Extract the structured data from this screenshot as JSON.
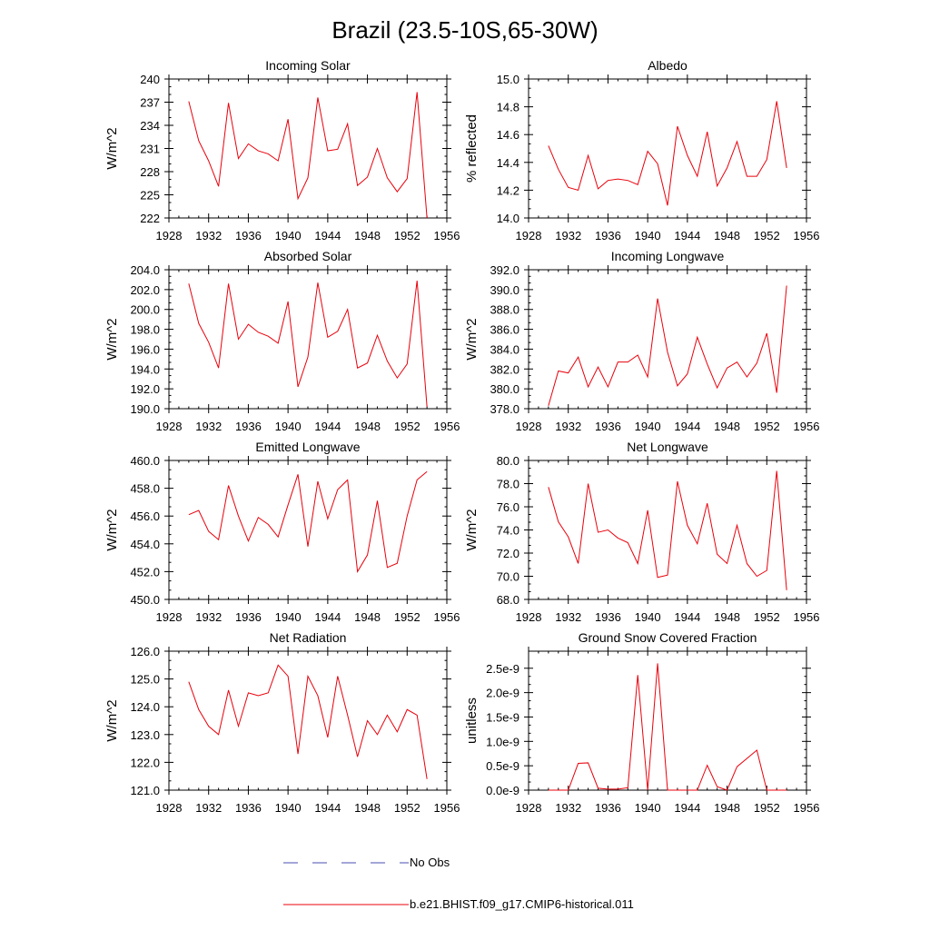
{
  "figure": {
    "title": "Brazil (23.5-10S,65-30W)",
    "legend": [
      {
        "label": "No Obs",
        "color": "#4a4fb0",
        "style": "dashed"
      },
      {
        "label": "b.e21.BHIST.f09_g17.CMIP6-historical.011",
        "color": "#e8000b",
        "style": "solid"
      }
    ]
  },
  "chart_data": [
    {
      "type": "line",
      "title": "Incoming Solar",
      "ylabel": "W/m^2",
      "xlim": [
        1928,
        1956
      ],
      "ylim": [
        222,
        240
      ],
      "xticks": [
        1928,
        1932,
        1936,
        1940,
        1944,
        1948,
        1952,
        1956
      ],
      "yticks": [
        "222",
        "225",
        "228",
        "231",
        "234",
        "237",
        "240"
      ],
      "x": [
        1930,
        1931,
        1932,
        1933,
        1934,
        1935,
        1936,
        1937,
        1938,
        1939,
        1940,
        1941,
        1942,
        1943,
        1944,
        1945,
        1946,
        1947,
        1948,
        1949,
        1950,
        1951,
        1952,
        1953,
        1954
      ],
      "series": [
        {
          "color": "#e8000b",
          "values": [
            237.1,
            232.0,
            229.4,
            226.1,
            236.9,
            229.7,
            231.6,
            230.7,
            230.3,
            229.4,
            234.8,
            224.5,
            227.2,
            237.6,
            230.7,
            230.9,
            234.2,
            226.2,
            227.3,
            231.0,
            227.2,
            225.4,
            227.1,
            238.3,
            222.0
          ]
        }
      ]
    },
    {
      "type": "line",
      "title": "Albedo",
      "ylabel": "% reflected",
      "xlim": [
        1928,
        1956
      ],
      "ylim": [
        14.0,
        15.0
      ],
      "xticks": [
        1928,
        1932,
        1936,
        1940,
        1944,
        1948,
        1952,
        1956
      ],
      "yticks": [
        "14.0",
        "14.2",
        "14.4",
        "14.6",
        "14.8",
        "15.0"
      ],
      "x": [
        1930,
        1931,
        1932,
        1933,
        1934,
        1935,
        1936,
        1937,
        1938,
        1939,
        1940,
        1941,
        1942,
        1943,
        1944,
        1945,
        1946,
        1947,
        1948,
        1949,
        1950,
        1951,
        1952,
        1953,
        1954
      ],
      "series": [
        {
          "color": "#e8000b",
          "values": [
            14.52,
            14.35,
            14.22,
            14.2,
            14.45,
            14.21,
            14.27,
            14.28,
            14.27,
            14.24,
            14.48,
            14.39,
            14.09,
            14.66,
            14.45,
            14.3,
            14.62,
            14.23,
            14.36,
            14.55,
            14.3,
            14.3,
            14.42,
            14.84,
            14.36
          ]
        }
      ]
    },
    {
      "type": "line",
      "title": "Absorbed Solar",
      "ylabel": "W/m^2",
      "xlim": [
        1928,
        1956
      ],
      "ylim": [
        190,
        204
      ],
      "xticks": [
        1928,
        1932,
        1936,
        1940,
        1944,
        1948,
        1952,
        1956
      ],
      "yticks": [
        "190.0",
        "192.0",
        "194.0",
        "196.0",
        "198.0",
        "200.0",
        "202.0",
        "204.0"
      ],
      "x": [
        1930,
        1931,
        1932,
        1933,
        1934,
        1935,
        1936,
        1937,
        1938,
        1939,
        1940,
        1941,
        1942,
        1943,
        1944,
        1945,
        1946,
        1947,
        1948,
        1949,
        1950,
        1951,
        1952,
        1953,
        1954
      ],
      "series": [
        {
          "color": "#e8000b",
          "values": [
            202.6,
            198.6,
            196.7,
            194.1,
            202.6,
            197.0,
            198.5,
            197.7,
            197.3,
            196.6,
            200.8,
            192.2,
            195.2,
            202.7,
            197.2,
            197.8,
            200.0,
            194.1,
            194.6,
            197.4,
            194.8,
            193.1,
            194.5,
            202.9,
            190.2
          ]
        }
      ]
    },
    {
      "type": "line",
      "title": "Incoming Longwave",
      "ylabel": "W/m^2",
      "xlim": [
        1928,
        1956
      ],
      "ylim": [
        378,
        392
      ],
      "xticks": [
        1928,
        1932,
        1936,
        1940,
        1944,
        1948,
        1952,
        1956
      ],
      "yticks": [
        "378.0",
        "380.0",
        "382.0",
        "384.0",
        "386.0",
        "388.0",
        "390.0",
        "392.0"
      ],
      "x": [
        1930,
        1931,
        1932,
        1933,
        1934,
        1935,
        1936,
        1937,
        1938,
        1939,
        1940,
        1941,
        1942,
        1943,
        1944,
        1945,
        1946,
        1947,
        1948,
        1949,
        1950,
        1951,
        1952,
        1953,
        1954
      ],
      "series": [
        {
          "color": "#e8000b",
          "values": [
            378.3,
            381.8,
            381.6,
            383.2,
            380.2,
            382.2,
            380.2,
            382.7,
            382.7,
            383.4,
            381.2,
            389.1,
            383.7,
            380.3,
            381.5,
            385.2,
            382.5,
            380.1,
            382.1,
            382.7,
            381.2,
            382.6,
            385.6,
            379.6,
            390.4
          ]
        }
      ]
    },
    {
      "type": "line",
      "title": "Emitted Longwave",
      "ylabel": "W/m^2",
      "xlim": [
        1928,
        1956
      ],
      "ylim": [
        450,
        460
      ],
      "xticks": [
        1928,
        1932,
        1936,
        1940,
        1944,
        1948,
        1952,
        1956
      ],
      "yticks": [
        "450.0",
        "452.0",
        "454.0",
        "456.0",
        "458.0",
        "460.0"
      ],
      "x": [
        1930,
        1931,
        1932,
        1933,
        1934,
        1935,
        1936,
        1937,
        1938,
        1939,
        1940,
        1941,
        1942,
        1943,
        1944,
        1945,
        1946,
        1947,
        1948,
        1949,
        1950,
        1951,
        1952,
        1953,
        1954
      ],
      "series": [
        {
          "color": "#e8000b",
          "values": [
            456.1,
            456.4,
            454.9,
            454.3,
            458.2,
            456.0,
            454.2,
            455.9,
            455.4,
            454.5,
            456.8,
            459.0,
            453.8,
            458.5,
            455.8,
            457.9,
            458.6,
            452.0,
            453.2,
            457.1,
            452.3,
            452.6,
            456.0,
            458.6,
            459.2
          ]
        }
      ]
    },
    {
      "type": "line",
      "title": "Net Longwave",
      "ylabel": "W/m^2",
      "xlim": [
        1928,
        1956
      ],
      "ylim": [
        68,
        80
      ],
      "xticks": [
        1928,
        1932,
        1936,
        1940,
        1944,
        1948,
        1952,
        1956
      ],
      "yticks": [
        "68.0",
        "70.0",
        "72.0",
        "74.0",
        "76.0",
        "78.0",
        "80.0"
      ],
      "x": [
        1930,
        1931,
        1932,
        1933,
        1934,
        1935,
        1936,
        1937,
        1938,
        1939,
        1940,
        1941,
        1942,
        1943,
        1944,
        1945,
        1946,
        1947,
        1948,
        1949,
        1950,
        1951,
        1952,
        1953,
        1954
      ],
      "series": [
        {
          "color": "#e8000b",
          "values": [
            77.7,
            74.7,
            73.4,
            71.1,
            78.0,
            73.8,
            74.0,
            73.3,
            72.9,
            71.1,
            75.7,
            69.9,
            70.1,
            78.2,
            74.4,
            72.8,
            76.3,
            71.9,
            71.1,
            74.4,
            71.1,
            70.0,
            70.5,
            79.1,
            68.8
          ]
        }
      ]
    },
    {
      "type": "line",
      "title": "Net Radiation",
      "ylabel": "W/m^2",
      "xlim": [
        1928,
        1956
      ],
      "ylim": [
        121,
        126
      ],
      "xticks": [
        1928,
        1932,
        1936,
        1940,
        1944,
        1948,
        1952,
        1956
      ],
      "yticks": [
        "121.0",
        "122.0",
        "123.0",
        "124.0",
        "125.0",
        "126.0"
      ],
      "x": [
        1930,
        1931,
        1932,
        1933,
        1934,
        1935,
        1936,
        1937,
        1938,
        1939,
        1940,
        1941,
        1942,
        1943,
        1944,
        1945,
        1946,
        1947,
        1948,
        1949,
        1950,
        1951,
        1952,
        1953,
        1954
      ],
      "series": [
        {
          "color": "#e8000b",
          "values": [
            124.9,
            123.9,
            123.3,
            123.0,
            124.6,
            123.3,
            124.5,
            124.4,
            124.5,
            125.5,
            125.1,
            122.3,
            125.1,
            124.4,
            122.9,
            125.1,
            123.7,
            122.2,
            123.5,
            123.0,
            123.7,
            123.1,
            123.9,
            123.7,
            121.4
          ]
        }
      ]
    },
    {
      "type": "line",
      "title": "Ground Snow Covered Fraction",
      "ylabel": "unitless",
      "xlim": [
        1928,
        1956
      ],
      "ylim": [
        0,
        2.85e-09
      ],
      "xticks": [
        1928,
        1932,
        1936,
        1940,
        1944,
        1948,
        1952,
        1956
      ],
      "yticks": [
        "0.0e-9",
        "0.5e-9",
        "1.0e-9",
        "1.5e-9",
        "2.0e-9",
        "2.5e-9"
      ],
      "ytick_values": [
        0,
        5e-10,
        1e-09,
        1.5e-09,
        2e-09,
        2.5e-09
      ],
      "x": [
        1930,
        1931,
        1932,
        1933,
        1934,
        1935,
        1936,
        1937,
        1938,
        1939,
        1940,
        1941,
        1942,
        1943,
        1944,
        1945,
        1946,
        1947,
        1948,
        1949,
        1950,
        1951,
        1952,
        1953,
        1954
      ],
      "series": [
        {
          "color": "#e8000b",
          "values": [
            0,
            0,
            0,
            5.5e-10,
            5.6e-10,
            4e-11,
            2e-11,
            2e-11,
            5e-11,
            2.36e-09,
            0,
            2.6e-09,
            0,
            0,
            0,
            0,
            5.1e-10,
            7e-11,
            0,
            4.8e-10,
            6.5e-10,
            8.2e-10,
            0,
            0,
            0
          ]
        }
      ]
    }
  ]
}
